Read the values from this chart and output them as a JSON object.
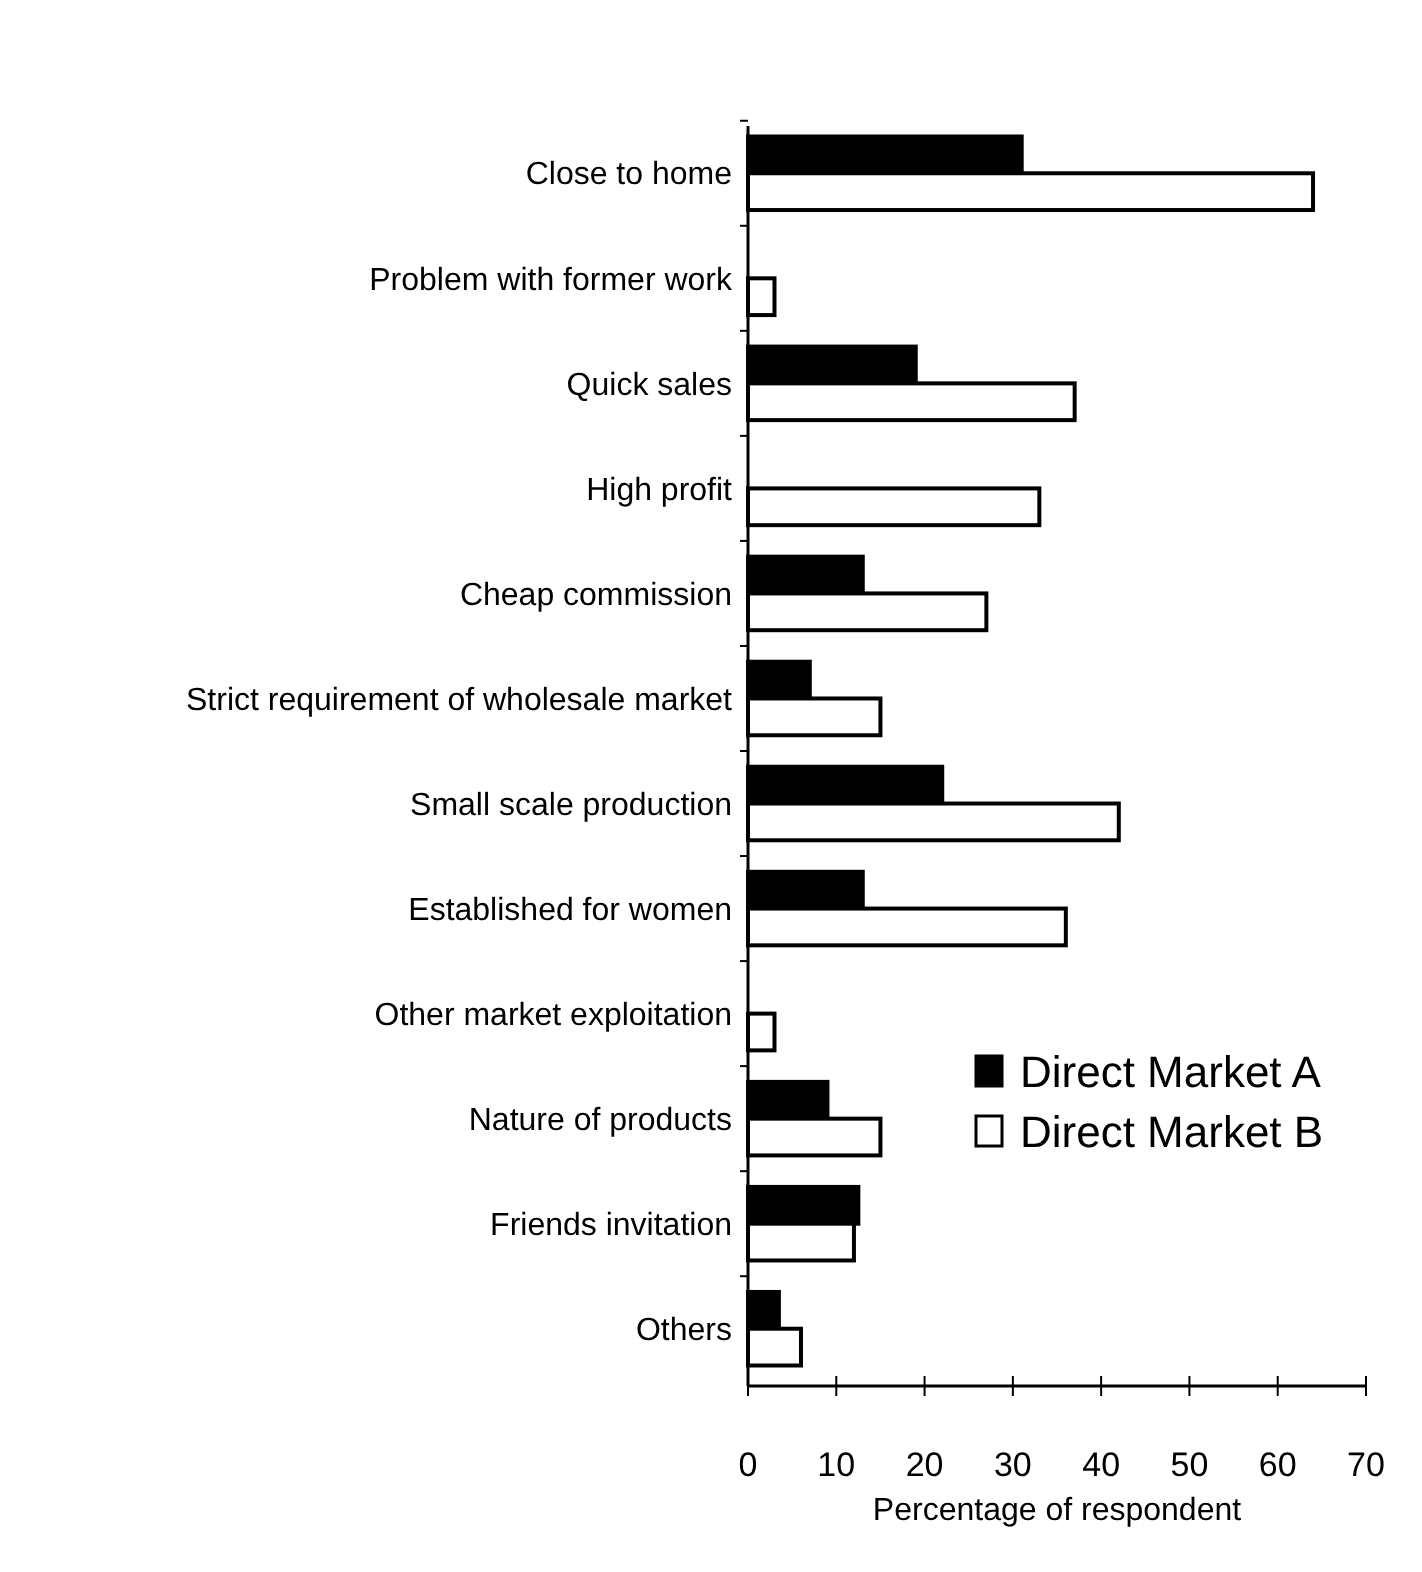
{
  "chart_data": {
    "type": "bar",
    "orientation": "horizontal",
    "xlabel": "Percentage of respondent",
    "categories": [
      "Close to home",
      "Problem with former work",
      "Quick sales",
      "High profit",
      "Cheap commission",
      "Strict requirement of wholesale market",
      "Small scale production",
      "Established for women",
      "Other market exploitation",
      "Nature of products",
      "Friends invitation",
      "Others"
    ],
    "series": [
      {
        "name": "Direct Market A",
        "color": "#000000",
        "values": [
          31,
          0,
          19,
          0,
          13,
          7,
          22,
          13,
          0,
          9,
          12.5,
          3.5
        ]
      },
      {
        "name": "Direct Market B",
        "color": "#ffffff",
        "values": [
          64,
          3,
          37,
          33,
          27,
          15,
          42,
          36,
          3,
          15,
          12,
          6
        ]
      }
    ],
    "xlim": [
      0,
      70
    ],
    "xticks": [
      0,
      10,
      20,
      30,
      40,
      50,
      60,
      70
    ],
    "grid": false,
    "legend": "right"
  }
}
